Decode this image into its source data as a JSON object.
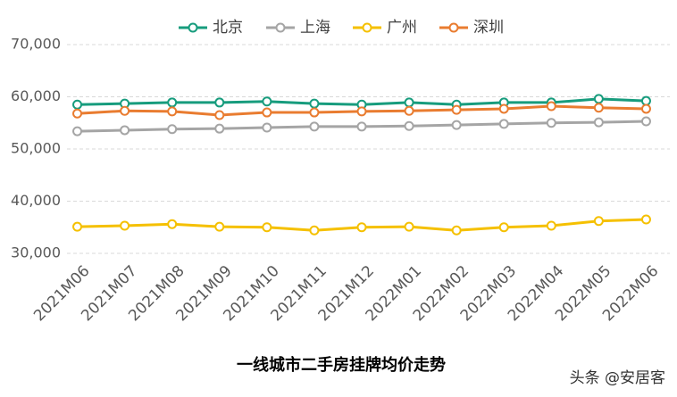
{
  "chart_data": {
    "type": "line",
    "title": "一线城市二手房挂牌均价走势",
    "watermark": "头条 @安居客",
    "categories": [
      "2021M06",
      "2021M07",
      "2021M08",
      "2021M09",
      "2021M10",
      "2021M11",
      "2021M12",
      "2022M01",
      "2022M02",
      "2022M03",
      "2022M04",
      "2022M05",
      "2022M06"
    ],
    "series": [
      {
        "name": "北京",
        "color": "#179c7d",
        "values": [
          58500,
          58700,
          58900,
          58900,
          59100,
          58700,
          58500,
          58900,
          58500,
          58900,
          58900,
          59600,
          59200
        ]
      },
      {
        "name": "上海",
        "color": "#a5a5a5",
        "values": [
          53400,
          53600,
          53800,
          53900,
          54100,
          54300,
          54300,
          54400,
          54600,
          54800,
          55000,
          55100,
          55300
        ]
      },
      {
        "name": "广州",
        "color": "#f5c000",
        "values": [
          35100,
          35300,
          35600,
          35100,
          35000,
          34400,
          35000,
          35100,
          34400,
          35000,
          35300,
          36200,
          36500
        ]
      },
      {
        "name": "深圳",
        "color": "#e97c30",
        "values": [
          56800,
          57300,
          57200,
          56500,
          57000,
          57000,
          57200,
          57300,
          57500,
          57700,
          58200,
          57900,
          57700
        ]
      }
    ],
    "ylim": [
      30000,
      70000
    ],
    "yticks": [
      {
        "value": 30000,
        "label": "30,000"
      },
      {
        "value": 40000,
        "label": "40,000"
      },
      {
        "value": 50000,
        "label": "50,000"
      },
      {
        "value": 60000,
        "label": "60,000"
      },
      {
        "value": 70000,
        "label": "70,000"
      }
    ],
    "grid": true,
    "legend": "top"
  }
}
